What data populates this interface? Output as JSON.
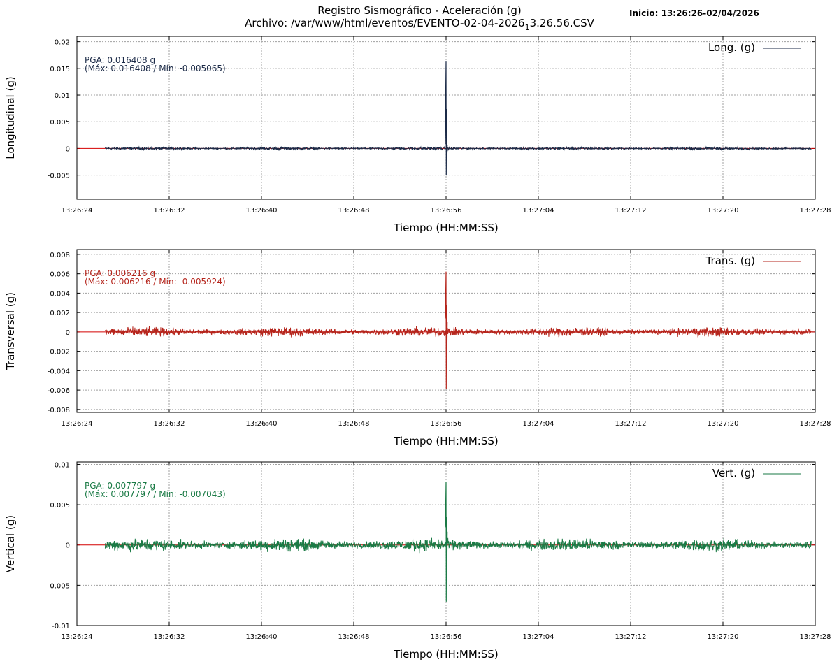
{
  "header": {
    "title": "Registro Sismográfico - Aceleración (g)",
    "file_prefix": "Archivo: /var/www/html/eventos/EVENTO-02-04-2026",
    "file_sub": "1",
    "file_suffix": "3.26.56.CSV",
    "start": "Inicio: 13:26:26-02/04/2026"
  },
  "chart_data": [
    {
      "type": "line",
      "ylabel": "Longitudinal (g)",
      "xlabel": "Tiempo (HH:MM:SS)",
      "legend": "Long. (g)",
      "legend_position": "top-right",
      "grid": true,
      "color": "#1b2a47",
      "zero_line_color": "#d40000",
      "xlim_s": [
        0,
        64
      ],
      "x_tick_labels": [
        "13:26:24",
        "13:26:32",
        "13:26:40",
        "13:26:48",
        "13:26:56",
        "13:27:04",
        "13:27:12",
        "13:27:20",
        "13:27:28"
      ],
      "ylim": [
        -0.0095,
        0.021
      ],
      "y_ticks": [
        -0.005,
        0,
        0.005,
        0.01,
        0.015,
        0.02
      ],
      "y_tick_labels": [
        "-0.005",
        "0",
        "0.005",
        "0.01",
        "0.015",
        "0.02"
      ],
      "pga": "PGA: 0.016408 g",
      "maxmin": "(Máx: 0.016408 / Mín: -0.005065)",
      "max": 0.016408,
      "min": -0.005065,
      "noise": 0.0004,
      "record_start_time": "13:26:26",
      "record_end_time": "13:27:27",
      "peak_time": "13:26:56"
    },
    {
      "type": "line",
      "ylabel": "Transversal (g)",
      "xlabel": "Tiempo (HH:MM:SS)",
      "legend": "Trans. (g)",
      "legend_position": "top-right",
      "grid": true,
      "color": "#b5251c",
      "zero_line_color": "#d40000",
      "xlim_s": [
        0,
        64
      ],
      "x_tick_labels": [
        "13:26:24",
        "13:26:32",
        "13:26:40",
        "13:26:48",
        "13:26:56",
        "13:27:04",
        "13:27:12",
        "13:27:20",
        "13:27:28"
      ],
      "ylim": [
        -0.0083,
        0.0085
      ],
      "y_ticks": [
        -0.008,
        -0.006,
        -0.004,
        -0.002,
        0,
        0.002,
        0.004,
        0.006,
        0.008
      ],
      "y_tick_labels": [
        "-0.008",
        "-0.006",
        "-0.004",
        "-0.002",
        "0",
        "0.002",
        "0.004",
        "0.006",
        "0.008"
      ],
      "pga": "PGA: 0.006216 g",
      "maxmin": "(Máx: 0.006216 / Mín: -0.005924)",
      "max": 0.006216,
      "min": -0.005924,
      "noise": 0.0007,
      "record_start_time": "13:26:26",
      "record_end_time": "13:27:27",
      "peak_time": "13:26:56"
    },
    {
      "type": "line",
      "ylabel": "Vertical (g)",
      "xlabel": "Tiempo (HH:MM:SS)",
      "legend": "Vert. (g)",
      "legend_position": "top-right",
      "grid": true,
      "color": "#1a7a45",
      "zero_line_color": "#d40000",
      "xlim_s": [
        0,
        64
      ],
      "x_tick_labels": [
        "13:26:24",
        "13:26:32",
        "13:26:40",
        "13:26:48",
        "13:26:56",
        "13:27:04",
        "13:27:12",
        "13:27:20",
        "13:27:28"
      ],
      "ylim": [
        -0.01,
        0.0103
      ],
      "y_ticks": [
        -0.01,
        -0.005,
        0,
        0.005,
        0.01
      ],
      "y_tick_labels": [
        "-0.01",
        "-0.005",
        "0",
        "0.005",
        "0.01"
      ],
      "pga": "PGA: 0.007797 g",
      "maxmin": "(Máx: 0.007797 / Mín: -0.007043)",
      "max": 0.007797,
      "min": -0.007043,
      "noise": 0.0011,
      "record_start_time": "13:26:26",
      "record_end_time": "13:27:27",
      "peak_time": "13:26:56"
    }
  ]
}
